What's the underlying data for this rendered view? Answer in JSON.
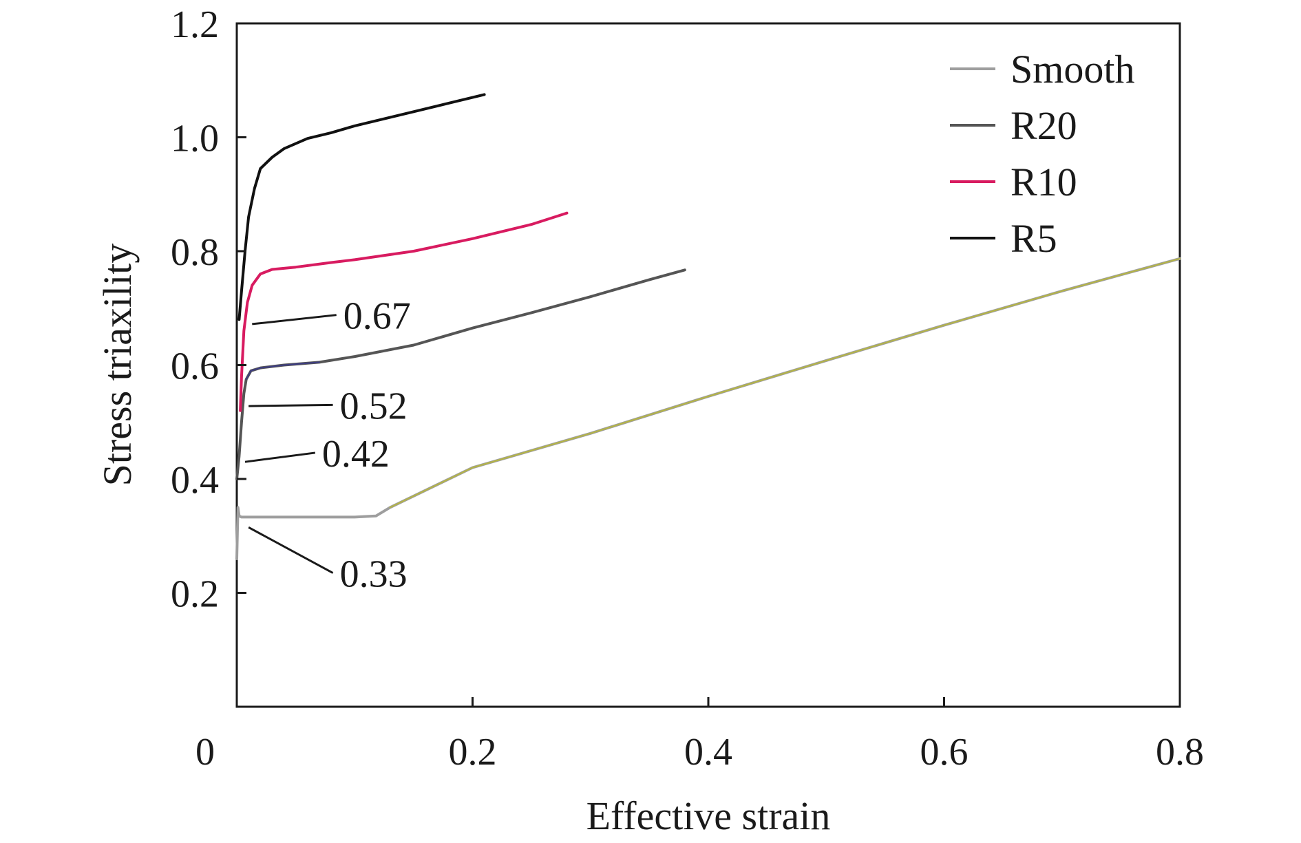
{
  "chart_data": {
    "type": "line",
    "xlabel": "Effective strain",
    "ylabel": "Stress triaxility",
    "xlim": [
      0,
      0.8
    ],
    "ylim": [
      0,
      1.2
    ],
    "x_ticks": [
      0,
      0.2,
      0.4,
      0.6,
      0.8
    ],
    "x_tick_labels": [
      "0",
      "0.2",
      "0.4",
      "0.6",
      "0.8"
    ],
    "y_ticks": [
      0.2,
      0.4,
      0.6,
      0.8,
      1.0,
      1.2
    ],
    "y_tick_labels": [
      "0.2",
      "0.4",
      "0.6",
      "0.8",
      "1.0",
      "1.2"
    ],
    "grid": false,
    "legend_position": "top-right",
    "series": [
      {
        "name": "Smooth",
        "color": "#9e9e9e",
        "x": [
          0,
          0.001,
          0.002,
          0.004,
          0.01,
          0.05,
          0.1,
          0.118,
          0.13,
          0.2,
          0.3,
          0.4,
          0.5,
          0.6,
          0.7,
          0.8
        ],
        "y": [
          0.26,
          0.35,
          0.335,
          0.333,
          0.333,
          0.333,
          0.333,
          0.335,
          0.35,
          0.42,
          0.48,
          0.545,
          0.608,
          0.67,
          0.73,
          0.787
        ]
      },
      {
        "name": "R20",
        "color": "#555555",
        "x": [
          0,
          0.002,
          0.004,
          0.006,
          0.008,
          0.012,
          0.02,
          0.04,
          0.07,
          0.1,
          0.15,
          0.2,
          0.25,
          0.3,
          0.35,
          0.38
        ],
        "y": [
          0.4,
          0.44,
          0.5,
          0.55,
          0.575,
          0.59,
          0.595,
          0.6,
          0.605,
          0.615,
          0.635,
          0.665,
          0.692,
          0.72,
          0.75,
          0.767
        ]
      },
      {
        "name": "R10",
        "color": "#d81b60",
        "x": [
          0.003,
          0.004,
          0.006,
          0.009,
          0.013,
          0.02,
          0.03,
          0.05,
          0.08,
          0.1,
          0.15,
          0.2,
          0.25,
          0.28
        ],
        "y": [
          0.52,
          0.58,
          0.66,
          0.71,
          0.74,
          0.76,
          0.768,
          0.772,
          0.78,
          0.785,
          0.8,
          0.822,
          0.847,
          0.867
        ]
      },
      {
        "name": "R5",
        "color": "#111111",
        "x": [
          0.002,
          0.004,
          0.007,
          0.01,
          0.015,
          0.02,
          0.03,
          0.04,
          0.06,
          0.08,
          0.1,
          0.12,
          0.15,
          0.18,
          0.21
        ],
        "y": [
          0.68,
          0.73,
          0.8,
          0.86,
          0.91,
          0.945,
          0.965,
          0.98,
          0.998,
          1.008,
          1.02,
          1.03,
          1.045,
          1.06,
          1.075
        ]
      }
    ],
    "segments": [
      {
        "series": "R20",
        "color": "#3a3a8c",
        "x": [
          0.008,
          0.012,
          0.02,
          0.04,
          0.07
        ],
        "y": [
          0.575,
          0.59,
          0.595,
          0.6,
          0.605
        ]
      },
      {
        "series": "Smooth",
        "color": "#b8b832",
        "x": [
          0.13,
          0.2,
          0.3,
          0.4,
          0.5,
          0.6,
          0.7,
          0.8
        ],
        "y": [
          0.35,
          0.42,
          0.48,
          0.545,
          0.608,
          0.67,
          0.73,
          0.787
        ]
      }
    ],
    "annotations": [
      {
        "text": "0.67",
        "point": [
          0.013,
          0.672
        ],
        "label_at": [
          0.088,
          0.688
        ]
      },
      {
        "text": "0.52",
        "point": [
          0.01,
          0.528
        ],
        "label_at": [
          0.085,
          0.53
        ]
      },
      {
        "text": "0.42",
        "point": [
          0.007,
          0.43
        ],
        "label_at": [
          0.07,
          0.446
        ]
      },
      {
        "text": "0.33",
        "point": [
          0.01,
          0.315
        ],
        "label_at": [
          0.085,
          0.235
        ]
      }
    ]
  }
}
